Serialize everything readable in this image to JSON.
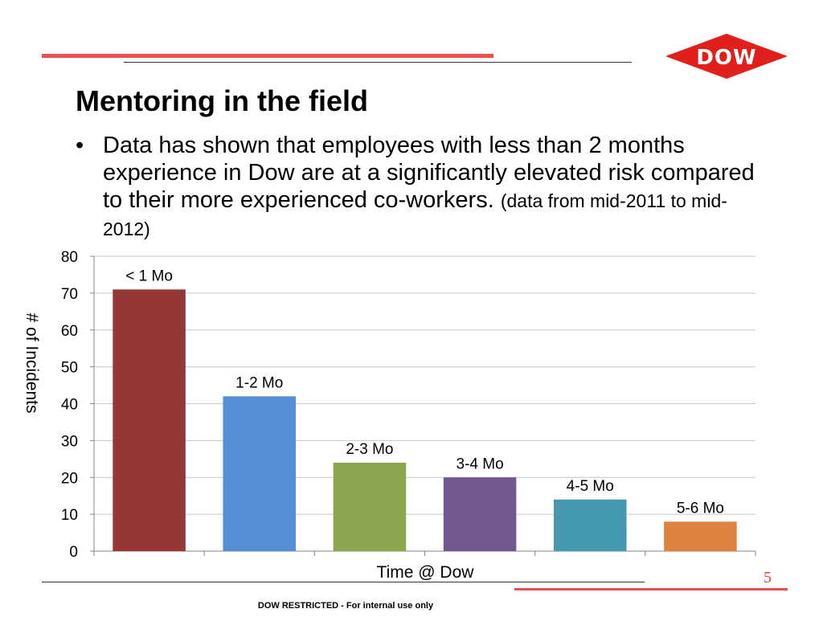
{
  "slide": {
    "title": "Mentoring in the field",
    "bullet_symbol": "•",
    "bullet_text": "Data has shown that employees with less than 2 months experience in Dow are at a significantly elevated risk compared to their more experienced co-workers.",
    "bullet_note": "(data from mid-2011 to mid-2012)",
    "logo_text": "DOW",
    "page_number": "5",
    "footer": "DOW RESTRICTED - For internal use only"
  },
  "colors": {
    "accent_red": "#f04e4e",
    "logo_red": "#e1201c"
  },
  "chart_data": {
    "type": "bar",
    "title": "",
    "xlabel": "Time @ Dow",
    "ylabel": "# of Incidents",
    "categories": [
      "< 1 Mo",
      "1-2 Mo",
      "2-3 Mo",
      "3-4 Mo",
      "4-5 Mo",
      "5-6 Mo"
    ],
    "values": [
      71,
      42,
      24,
      20,
      14,
      8
    ],
    "colors": [
      "#953735",
      "#558ed5",
      "#8aa64f",
      "#71588f",
      "#4498b0",
      "#dc843f"
    ],
    "ylim": [
      0,
      80
    ],
    "yticks": [
      0,
      10,
      20,
      30,
      40,
      50,
      60,
      70,
      80
    ],
    "grid": true,
    "legend": "none"
  }
}
